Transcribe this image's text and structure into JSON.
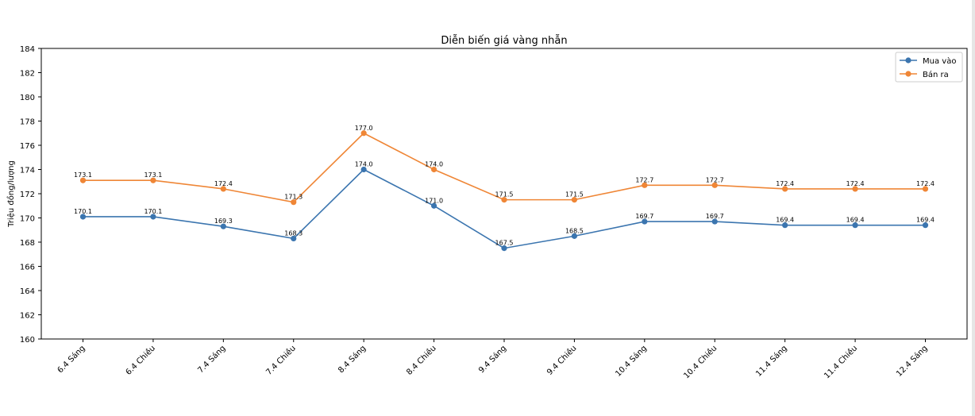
{
  "chart_data": {
    "type": "line",
    "title": "Diễn biến giá vàng nhẫn",
    "xlabel": "",
    "ylabel": "Triệu đồng/lượng",
    "ylim": [
      160,
      184
    ],
    "yticks": [
      160,
      162,
      164,
      166,
      168,
      170,
      172,
      174,
      176,
      178,
      180,
      182,
      184
    ],
    "categories": [
      "6.4 Sáng",
      "6.4 Chiều",
      "7.4 Sáng",
      "7.4 Chiều",
      "8.4 Sáng",
      "8.4 Chiều",
      "9.4 Sáng",
      "9.4 Chiều",
      "10.4 Sáng",
      "10.4 Chiều",
      "11.4 Sáng",
      "11.4 Chiều",
      "12.4 Sáng"
    ],
    "legend_position": "top-right",
    "grid": false,
    "series": [
      {
        "name": "Mua vào",
        "color": "#3b75af",
        "values": [
          170.1,
          170.1,
          169.3,
          168.3,
          174.0,
          171.0,
          167.5,
          168.5,
          169.7,
          169.7,
          169.4,
          169.4,
          169.4
        ],
        "labels": [
          "170.1",
          "170.1",
          "169.3",
          "168.3",
          "174.0",
          "171.0",
          "167.5",
          "168.5",
          "169.7",
          "169.7",
          "169.4",
          "169.4",
          "169.4"
        ]
      },
      {
        "name": "Bán ra",
        "color": "#ef8636",
        "values": [
          173.1,
          173.1,
          172.4,
          171.3,
          177.0,
          174.0,
          171.5,
          171.5,
          172.7,
          172.7,
          172.4,
          172.4,
          172.4
        ],
        "labels": [
          "173.1",
          "173.1",
          "172.4",
          "171.3",
          "177.0",
          "174.0",
          "171.5",
          "171.5",
          "172.7",
          "172.7",
          "172.4",
          "172.4",
          "172.4"
        ]
      }
    ]
  }
}
